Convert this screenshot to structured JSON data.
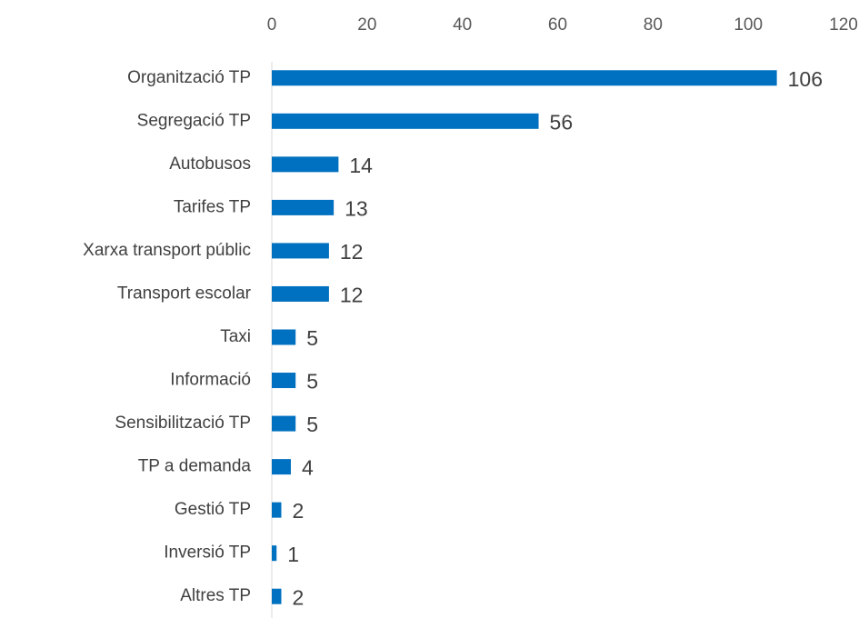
{
  "chart_data": {
    "type": "bar",
    "orientation": "horizontal",
    "categories": [
      "Organització TP",
      "Segregació TP",
      "Autobusos",
      "Tarifes TP",
      "Xarxa transport públic",
      "Transport escolar",
      "Taxi",
      "Informació",
      "Sensibilització TP",
      "TP a demanda",
      "Gestió TP",
      "Inversió TP",
      "Altres TP"
    ],
    "values": [
      106,
      56,
      14,
      13,
      12,
      12,
      5,
      5,
      5,
      4,
      2,
      1,
      2
    ],
    "color": "#0070c0",
    "xlim": [
      0,
      120
    ],
    "xticks": [
      0,
      20,
      40,
      60,
      80,
      100,
      120
    ],
    "grid": false,
    "data_labels": true
  }
}
